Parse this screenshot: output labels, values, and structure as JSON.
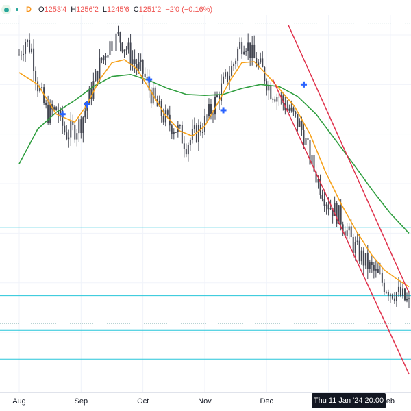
{
  "legend": {
    "interval": "D",
    "open_label": "O",
    "open": "1253'4",
    "high_label": "H",
    "high": "1256'2",
    "low_label": "L",
    "low": "1245'6",
    "close_label": "C",
    "close": "1251'2",
    "change": "−2'0 (−0.16%)"
  },
  "crosshair": {
    "time_label": "Thu 11 Jan '24  20:00"
  },
  "colors": {
    "up": "#26a69a",
    "down": "#ef5350",
    "candle": "#434651",
    "ma_fast": "#f7a21b",
    "ma_slow": "#2e9e3e",
    "channel": "#e0314b",
    "hline": "#26c6da",
    "marker": "#2962ff",
    "bg": "#ffffff"
  },
  "chart_data": {
    "type": "line",
    "x_ticks": [
      "Aug",
      "Sep",
      "Oct",
      "Nov",
      "Dec",
      "Jan",
      "Feb"
    ],
    "month_ticks": [
      {
        "label": "Aug"
      },
      {
        "label": "Sep"
      },
      {
        "label": "Oct"
      },
      {
        "label": "Nov"
      },
      {
        "label": "Dec"
      },
      {
        "label": "Feb",
        "partial": "eb"
      }
    ],
    "series": [
      {
        "kind": "candles",
        "values": [
          [
            0,
            1330
          ],
          [
            0.1,
            1345
          ],
          [
            0.2,
            1335
          ],
          [
            0.3,
            1300
          ],
          [
            0.45,
            1270
          ],
          [
            0.6,
            1275
          ],
          [
            0.75,
            1250
          ],
          [
            0.9,
            1255
          ],
          [
            1.0,
            1262
          ],
          [
            1.15,
            1290
          ],
          [
            1.3,
            1320
          ],
          [
            1.45,
            1340
          ],
          [
            1.6,
            1348
          ],
          [
            1.75,
            1335
          ],
          [
            1.9,
            1318
          ],
          [
            2.0,
            1312
          ],
          [
            2.1,
            1295
          ],
          [
            2.25,
            1275
          ],
          [
            2.4,
            1262
          ],
          [
            2.55,
            1255
          ],
          [
            2.7,
            1240
          ],
          [
            2.85,
            1250
          ],
          [
            3.0,
            1262
          ],
          [
            3.15,
            1280
          ],
          [
            3.3,
            1300
          ],
          [
            3.45,
            1318
          ],
          [
            3.55,
            1338
          ],
          [
            3.65,
            1345
          ],
          [
            3.8,
            1325
          ],
          [
            3.95,
            1312
          ],
          [
            4.05,
            1295
          ],
          [
            4.2,
            1288
          ],
          [
            4.35,
            1275
          ],
          [
            4.5,
            1262
          ],
          [
            4.6,
            1250
          ],
          [
            4.7,
            1225
          ],
          [
            4.85,
            1200
          ],
          [
            5.0,
            1180
          ],
          [
            5.2,
            1165
          ],
          [
            5.4,
            1138
          ],
          [
            5.6,
            1120
          ],
          [
            5.75,
            1110
          ],
          [
            5.9,
            1098
          ],
          [
            6.0,
            1092
          ],
          [
            6.1,
            1090
          ],
          [
            6.2,
            1085
          ],
          [
            6.3,
            1078
          ]
        ]
      },
      {
        "name": "",
        "kind": "ma-fast",
        "values": [
          [
            0,
            1312
          ],
          [
            0.3,
            1300
          ],
          [
            0.6,
            1270
          ],
          [
            0.9,
            1262
          ],
          [
            1.1,
            1280
          ],
          [
            1.3,
            1305
          ],
          [
            1.5,
            1322
          ],
          [
            1.7,
            1325
          ],
          [
            1.9,
            1316
          ],
          [
            2.1,
            1296
          ],
          [
            2.35,
            1270
          ],
          [
            2.6,
            1253
          ],
          [
            2.8,
            1248
          ],
          [
            3.0,
            1258
          ],
          [
            3.2,
            1280
          ],
          [
            3.4,
            1303
          ],
          [
            3.6,
            1322
          ],
          [
            3.8,
            1323
          ],
          [
            4.0,
            1310
          ],
          [
            4.2,
            1296
          ],
          [
            4.45,
            1278
          ],
          [
            4.7,
            1250
          ],
          [
            4.95,
            1212
          ],
          [
            5.2,
            1180
          ],
          [
            5.45,
            1152
          ],
          [
            5.7,
            1128
          ],
          [
            5.9,
            1113
          ],
          [
            6.1,
            1104
          ],
          [
            6.3,
            1096
          ]
        ]
      },
      {
        "name": "",
        "kind": "ma-slow",
        "values": [
          [
            0,
            1220
          ],
          [
            0.3,
            1255
          ],
          [
            0.6,
            1272
          ],
          [
            0.9,
            1284
          ],
          [
            1.2,
            1298
          ],
          [
            1.5,
            1308
          ],
          [
            1.8,
            1310
          ],
          [
            2.1,
            1304
          ],
          [
            2.4,
            1296
          ],
          [
            2.7,
            1290
          ],
          [
            3.0,
            1289
          ],
          [
            3.3,
            1290
          ],
          [
            3.6,
            1296
          ],
          [
            3.9,
            1300
          ],
          [
            4.2,
            1298
          ],
          [
            4.5,
            1288
          ],
          [
            4.8,
            1270
          ],
          [
            5.1,
            1245
          ],
          [
            5.4,
            1220
          ],
          [
            5.7,
            1194
          ],
          [
            6.0,
            1170
          ],
          [
            6.3,
            1150
          ]
        ]
      }
    ],
    "markers": [
      [
        0.7,
        1270
      ],
      [
        1.1,
        1280
      ],
      [
        2.1,
        1305
      ],
      [
        3.3,
        1274
      ],
      [
        4.6,
        1300
      ]
    ],
    "horizontal_lines": [
      1156,
      1087,
      1052,
      1023
    ],
    "dotted_lines": [
      1362,
      1059
    ],
    "channel": {
      "upper": [
        [
          4.35,
          1360
        ],
        [
          6.3,
          1090
        ]
      ],
      "lower": [
        [
          4.1,
          1305
        ],
        [
          6.3,
          1008
        ]
      ]
    },
    "ylim": [
      990,
      1370
    ],
    "xlim": [
      0,
      6.3
    ],
    "grid": true
  }
}
